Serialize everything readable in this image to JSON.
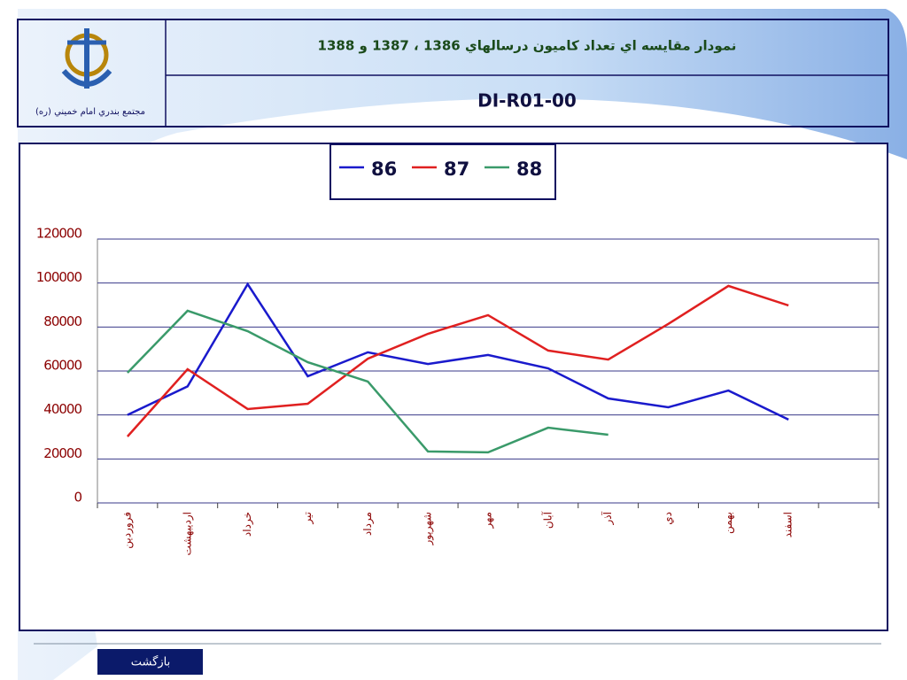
{
  "header": {
    "title": "نمودار مقايسه اي تعداد كاميون درسالهاي 1386 ، 1387 و 1388",
    "code": "DI-R01-00",
    "logo_caption": "مجتمع بندري امام خميني (ره)"
  },
  "chart_data": {
    "type": "line",
    "categories": [
      "فروردين",
      "ارديبهشت",
      "خرداد",
      "تير",
      "مرداد",
      "شهريور",
      "مهر",
      "آبان",
      "آذر",
      "دي",
      "بهمن",
      "اسفند",
      null
    ],
    "series": [
      {
        "name": "86",
        "color": "#1a1acc",
        "values": [
          40000,
          53000,
          99500,
          57600,
          68500,
          63200,
          67300,
          61200,
          47500,
          43500,
          51100,
          37900,
          null
        ]
      },
      {
        "name": "87",
        "color": "#e02020",
        "values": [
          30200,
          60800,
          42700,
          45100,
          65600,
          76900,
          85400,
          69300,
          65200,
          81400,
          98700,
          89800,
          null
        ]
      },
      {
        "name": "88",
        "color": "#3a9a6a",
        "values": [
          59200,
          87400,
          78100,
          64000,
          55200,
          23400,
          23000,
          34200,
          31000,
          null,
          null,
          null,
          null
        ]
      }
    ],
    "ylim": [
      0,
      120000
    ],
    "yticks": [
      0,
      20000,
      40000,
      60000,
      80000,
      100000,
      120000
    ],
    "grid": true
  },
  "footer": {
    "back": "بازگشت"
  }
}
